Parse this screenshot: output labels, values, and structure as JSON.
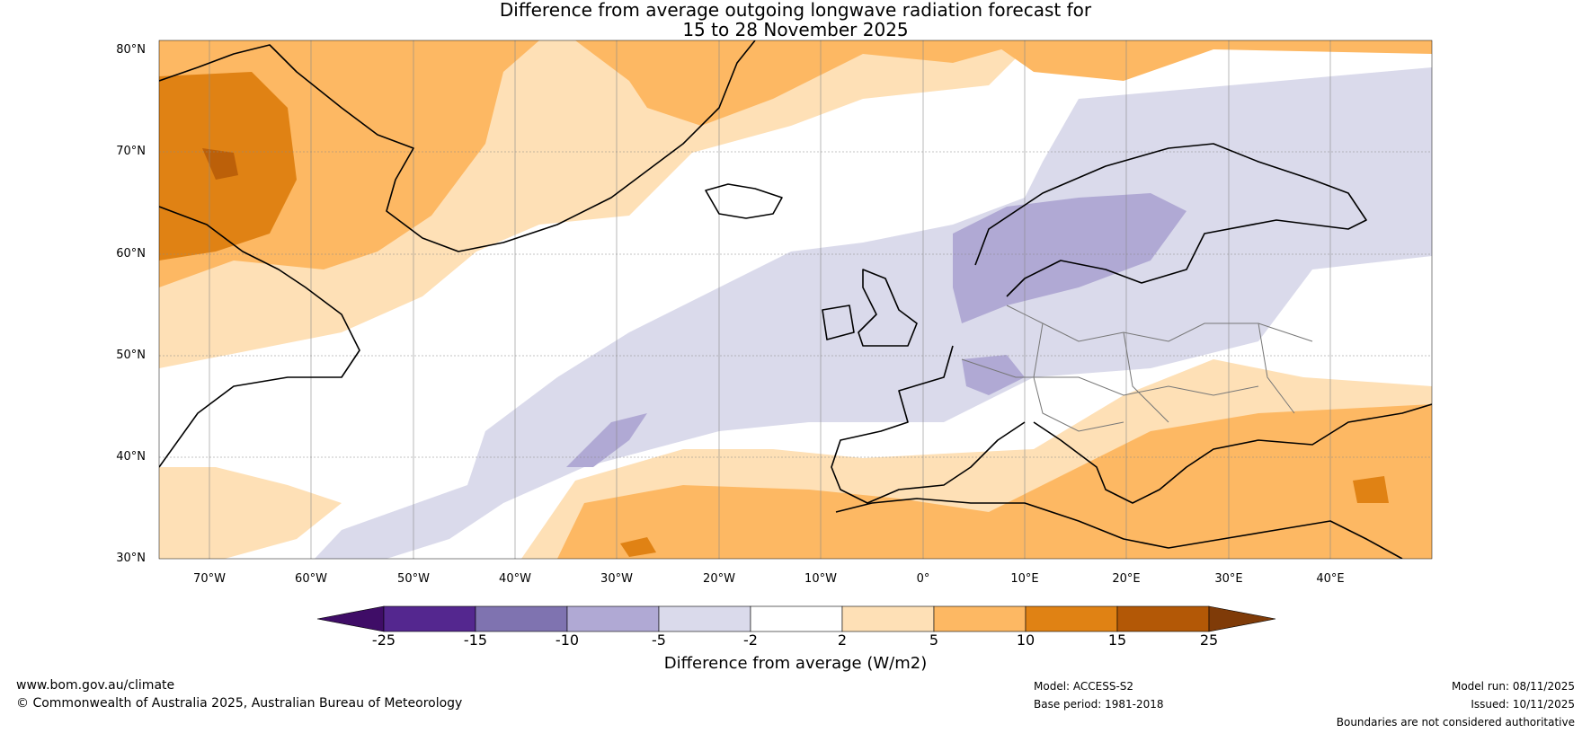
{
  "title": {
    "line1": "Difference from average outgoing longwave radiation forecast for",
    "line2": "15 to 28 November 2025"
  },
  "latitude_labels": [
    "80°N",
    "70°N",
    "60°N",
    "50°N",
    "40°N",
    "30°N"
  ],
  "latitude_values": [
    80,
    70,
    60,
    50,
    40,
    30
  ],
  "longitude_labels": [
    "70°W",
    "60°W",
    "50°W",
    "40°W",
    "30°W",
    "20°W",
    "10°W",
    "0°",
    "10°E",
    "20°E",
    "30°E",
    "40°E"
  ],
  "longitude_values": [
    -70,
    -60,
    -50,
    -40,
    -30,
    -20,
    -10,
    0,
    10,
    20,
    30,
    40
  ],
  "colorbar": {
    "ticks": [
      "-25",
      "-15",
      "-10",
      "-5",
      "-2",
      "2",
      "5",
      "10",
      "15",
      "25"
    ],
    "colors": [
      "#3f0d67",
      "#54278f",
      "#7f73b0",
      "#b0a9d4",
      "#dadaeb",
      "#ffffff",
      "#fee0b6",
      "#fdb863",
      "#e08214",
      "#b35806",
      "#7f3b08"
    ],
    "label": "Difference from average (W/m2)"
  },
  "footer": {
    "website": "www.bom.gov.au/climate",
    "copyright": "© Commonwealth of Australia 2025, Australian Bureau of Meteorology",
    "model": "Model: ACCESS-S2",
    "base_period": "Base period: 1981-2018",
    "model_run": "Model run: 08/11/2025",
    "issued": "Issued: 10/11/2025",
    "disclaimer": "Boundaries are not considered authoritative"
  }
}
